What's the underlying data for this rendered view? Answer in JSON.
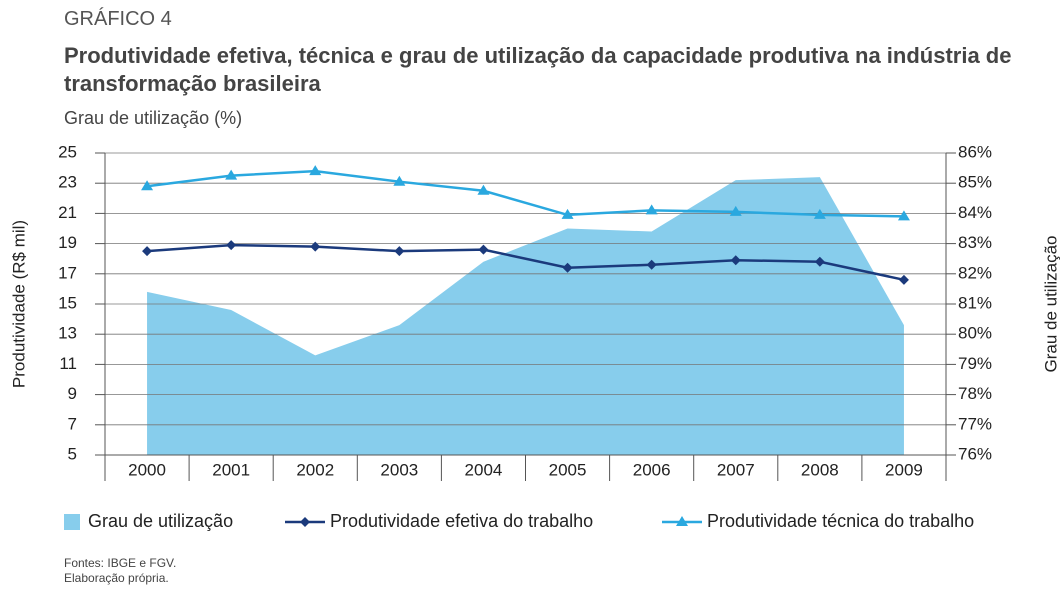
{
  "header": "GRÁFICO 4",
  "chart_data": {
    "type": "line",
    "title": "Produtividade efetiva, técnica e grau de utilização da capacidade produtiva na indústria de transformação brasileira",
    "subtitle": "Grau de utilização (%)",
    "y_label": "Produtividade (R$ mil)",
    "y2_label": "Grau de utilização",
    "categories": [
      "2000",
      "2001",
      "2002",
      "2003",
      "2004",
      "2005",
      "2006",
      "2007",
      "2008",
      "2009"
    ],
    "series": [
      {
        "name": "Grau de utilização",
        "type": "area",
        "axis": "y2",
        "color": "#87cdec",
        "values": [
          81.4,
          80.8,
          79.3,
          80.3,
          82.4,
          83.5,
          83.4,
          85.1,
          85.2,
          80.3
        ]
      },
      {
        "name": "Produtividade efetiva do trabalho",
        "type": "line",
        "marker": "diamond",
        "color": "#1b3a7c",
        "values": [
          18.5,
          18.9,
          18.8,
          18.5,
          18.6,
          17.4,
          17.6,
          17.9,
          17.8,
          16.6
        ]
      },
      {
        "name": "Produtividade técnica do trabalho",
        "type": "line",
        "marker": "triangle",
        "color": "#2aa8df",
        "values": [
          22.8,
          23.5,
          23.8,
          23.1,
          22.5,
          20.9,
          21.2,
          21.1,
          20.9,
          20.8
        ]
      }
    ],
    "ylim": [
      5,
      25
    ],
    "yticks": [
      5,
      7,
      9,
      11,
      13,
      15,
      17,
      19,
      21,
      23,
      25
    ],
    "y2lim": [
      76,
      86
    ],
    "y2ticks": [
      {
        "value": 76,
        "label": "76%"
      },
      {
        "value": 77,
        "label": "77%"
      },
      {
        "value": 78,
        "label": "78%"
      },
      {
        "value": 79,
        "label": "79%"
      },
      {
        "value": 80,
        "label": "80%"
      },
      {
        "value": 81,
        "label": "81%"
      },
      {
        "value": 82,
        "label": "82%"
      },
      {
        "value": 83,
        "label": "83%"
      },
      {
        "value": 84,
        "label": "84%"
      },
      {
        "value": 85,
        "label": "85%"
      },
      {
        "value": 86,
        "label": "86%"
      }
    ],
    "grid": true,
    "legend": "bottom",
    "notes": [
      "Fontes: IBGE e FGV.",
      "Elaboração própria."
    ]
  }
}
